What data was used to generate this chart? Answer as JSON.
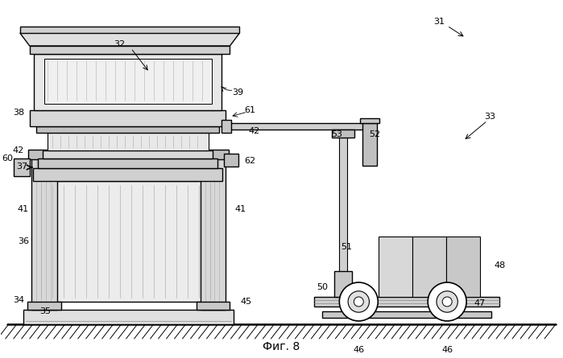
{
  "title": "Фиг. 8",
  "background_color": "#ffffff",
  "line_color": "#000000",
  "figsize": [
    6.99,
    4.45
  ],
  "dpi": 100
}
